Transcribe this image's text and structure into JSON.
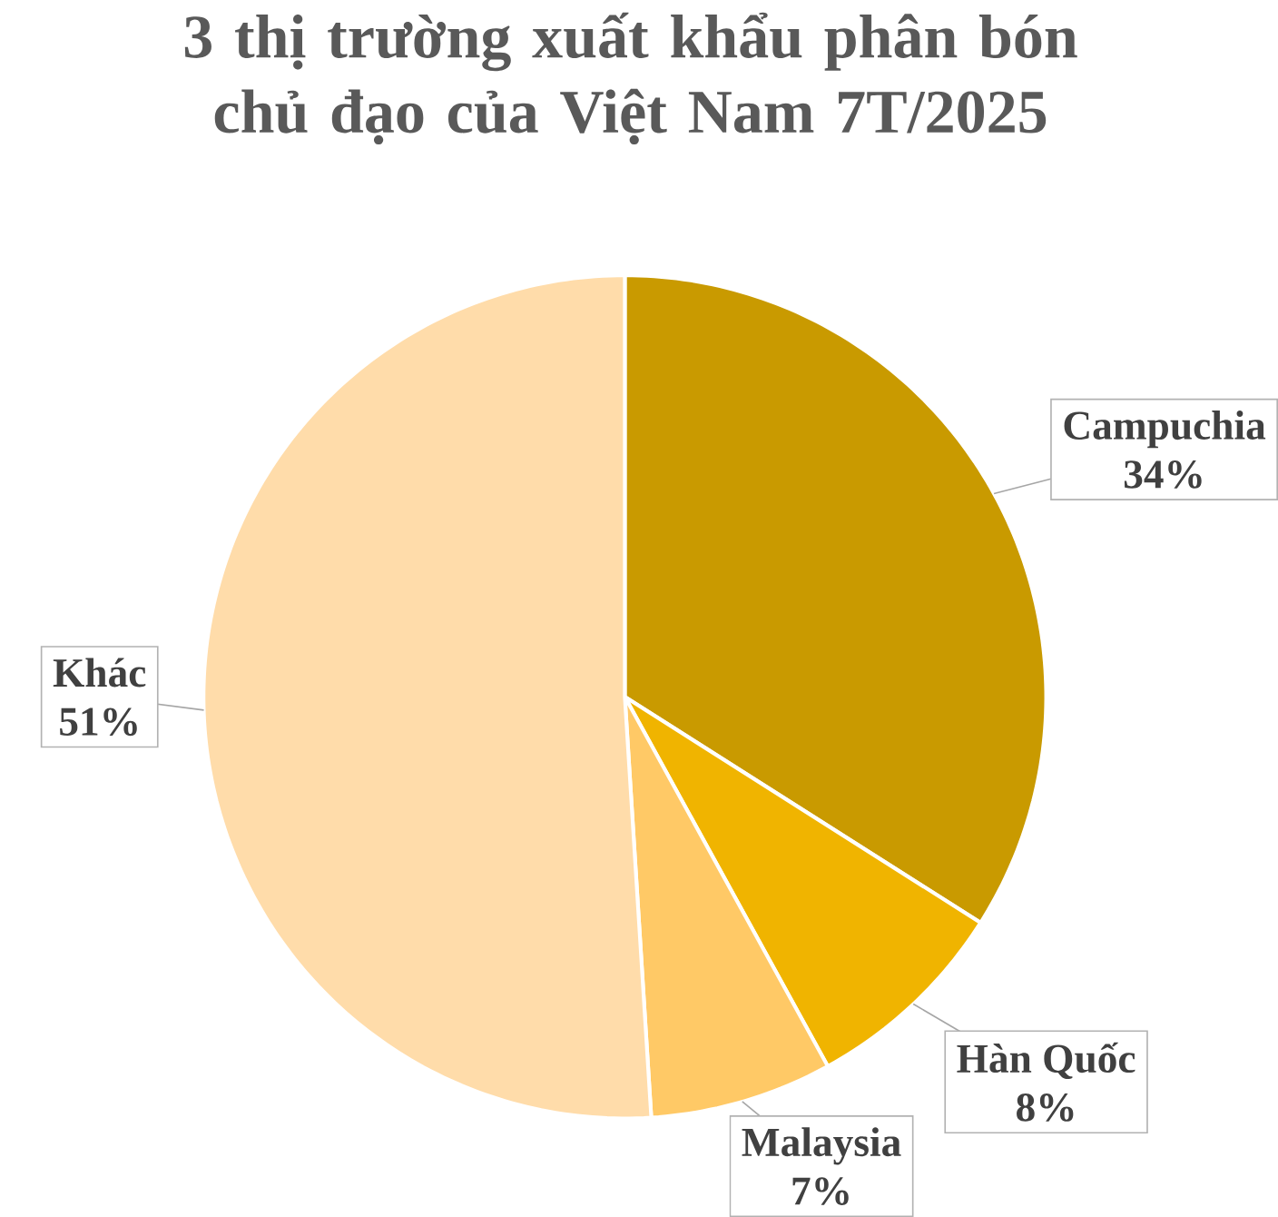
{
  "chart_data": {
    "type": "pie",
    "title": "3 thị trường xuất khẩu phân bón chủ đạo của Việt Nam 7T/2025",
    "categories": [
      "Campuchia",
      "Hàn Quốc",
      "Malaysia",
      "Khác"
    ],
    "values": [
      34,
      8,
      7,
      51
    ],
    "value_labels": [
      "34%",
      "8%",
      "7%",
      "51%"
    ],
    "colors": [
      "#c99a00",
      "#f0b400",
      "#ffc966",
      "#ffdcaa"
    ]
  }
}
